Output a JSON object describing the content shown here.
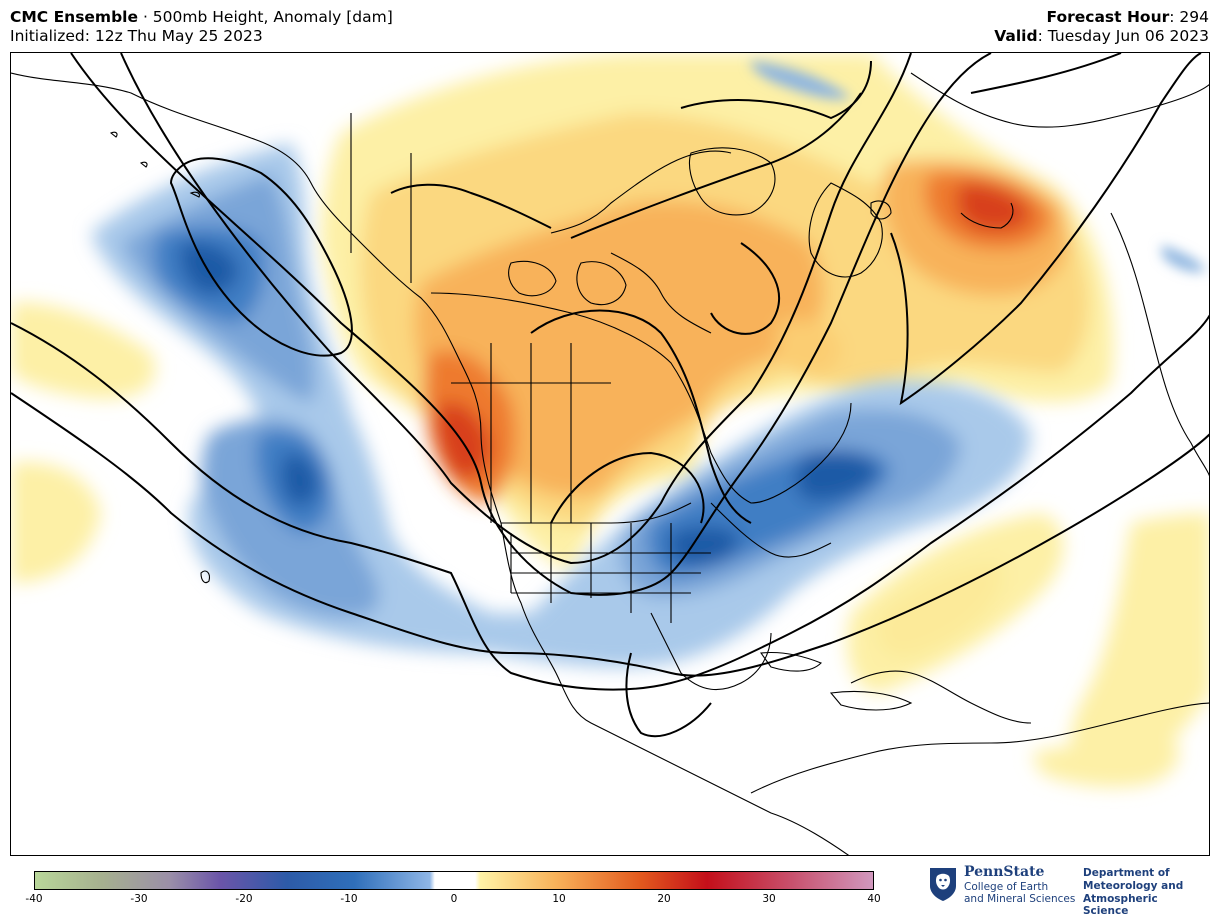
{
  "header": {
    "model": "CMC Ensemble",
    "separator": " · ",
    "field": "500mb Height, Anomaly [dam]",
    "initialized": "Initialized: 12z Thu May 25 2023",
    "forecast_hour_label": "Forecast Hour",
    "forecast_hour_value": ": 294",
    "valid_label": "Valid",
    "valid_value": ": Tuesday Jun 06 2023"
  },
  "colorbar": {
    "ticks": [
      "-40",
      "-30",
      "-20",
      "-10",
      "0",
      "10",
      "20",
      "30",
      "40"
    ],
    "min": -40,
    "max": 40,
    "neutral_range": [
      -2,
      2
    ]
  },
  "logo": {
    "name": "PennState",
    "college_line1": "College of Earth",
    "college_line2": "and Mineral Sciences",
    "dept_line1": "Department of",
    "dept_line2": "Meteorology and",
    "dept_line3": "Atmospheric Science"
  },
  "map": {
    "region": "North America",
    "colors": {
      "strong_negative": "#1c5aa6",
      "weak_negative": "#8fb6e0",
      "weak_positive": "#fdf0a6",
      "moderate_positive": "#f8b25a",
      "strong_positive": "#d8401c",
      "contour": "#000000"
    }
  }
}
